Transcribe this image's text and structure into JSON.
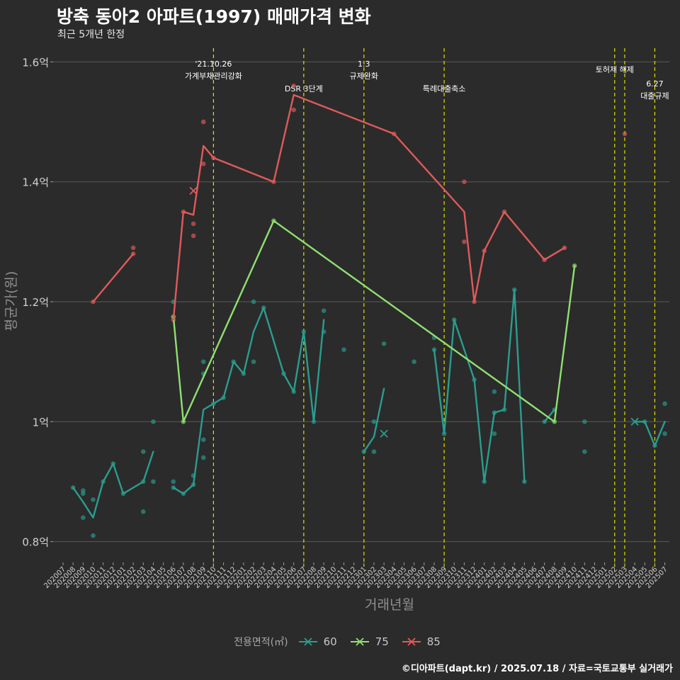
{
  "title": "방축 동아2 아파트(1997) 매매가격 변화",
  "subtitle": "최근 5개년 한정",
  "caption": "©디아파트(dapt.kr) / 2025.07.18 / 자료=국토교통부 실거래가",
  "colors": {
    "s60": "#2a9d8f",
    "s75": "#90e070",
    "s85": "#e05a5a",
    "vline": "#e0e000",
    "grid": "#5a5a5a",
    "background": "#2b2b2b"
  },
  "legend": {
    "title": "전용면적(㎡)",
    "icon": "x-marker-icon"
  },
  "chart_data": {
    "type": "line",
    "xlabel": "거래년월",
    "ylabel": "평균가(원)",
    "ylim": [
      0.77,
      1.63
    ],
    "y_ticks": [
      0.8,
      1.0,
      1.2,
      1.4,
      1.6
    ],
    "y_tick_labels": [
      "0.8억",
      "1억",
      "1.2억",
      "1.4억",
      "1.6억"
    ],
    "grid": "horizontal",
    "legend_position": "bottom",
    "x_ticks": [
      "202007",
      "202008",
      "202009",
      "202010",
      "202011",
      "202012",
      "202101",
      "202102",
      "202103",
      "202104",
      "202105",
      "202106",
      "202107",
      "202108",
      "202109",
      "202110",
      "202111",
      "202112",
      "202201",
      "202202",
      "202203",
      "202204",
      "202205",
      "202206",
      "202207",
      "202208",
      "202209",
      "202210",
      "202211",
      "202212",
      "202301",
      "202302",
      "202303",
      "202304",
      "202305",
      "202306",
      "202307",
      "202308",
      "202309",
      "202310",
      "202311",
      "202312",
      "202401",
      "202402",
      "202403",
      "202404",
      "202405",
      "202406",
      "202407",
      "202408",
      "202409",
      "202410",
      "202411",
      "202412",
      "202501",
      "202502",
      "202503",
      "202504",
      "202505",
      "202506",
      "202507"
    ],
    "series": [
      {
        "name": "60",
        "color": "#2a9d8f",
        "line": [
          [
            [
              1,
              0.89
            ],
            [
              2,
              0.866
            ],
            [
              3,
              0.84
            ],
            [
              4,
              0.9
            ],
            [
              5,
              0.93
            ],
            [
              6,
              0.88
            ],
            [
              8,
              0.9
            ],
            [
              9,
              0.95
            ]
          ],
          [
            [
              11,
              0.89
            ],
            [
              12,
              0.88
            ],
            [
              13,
              0.895
            ],
            [
              14,
              1.02
            ],
            [
              15,
              1.03
            ],
            [
              16,
              1.04
            ],
            [
              17,
              1.1
            ],
            [
              18,
              1.08
            ],
            [
              19,
              1.15
            ],
            [
              20,
              1.19
            ],
            [
              22,
              1.08
            ],
            [
              23,
              1.05
            ],
            [
              24,
              1.15
            ],
            [
              25,
              1.0
            ],
            [
              26,
              1.17
            ]
          ],
          [
            [
              30,
              0.95
            ],
            [
              31,
              0.975
            ],
            [
              32,
              1.055
            ]
          ],
          [
            [
              37,
              1.12
            ],
            [
              38,
              0.98
            ],
            [
              39,
              1.17
            ],
            [
              41,
              1.07
            ],
            [
              42,
              0.9
            ],
            [
              43,
              1.015
            ],
            [
              44,
              1.02
            ],
            [
              45,
              1.22
            ],
            [
              46,
              0.9
            ]
          ],
          [
            [
              48,
              1.0
            ],
            [
              49,
              1.02
            ]
          ],
          [
            [
              57,
              1.0
            ],
            [
              58,
              1.0
            ],
            [
              59,
              0.96
            ],
            [
              60,
              1.0
            ]
          ]
        ],
        "points": [
          [
            1,
            0.89
          ],
          [
            2,
            0.885
          ],
          [
            2,
            0.88
          ],
          [
            2,
            0.84
          ],
          [
            3,
            0.87
          ],
          [
            3,
            0.81
          ],
          [
            4,
            0.9
          ],
          [
            5,
            0.93
          ],
          [
            6,
            0.88
          ],
          [
            8,
            0.95
          ],
          [
            8,
            0.85
          ],
          [
            8,
            0.9
          ],
          [
            9,
            1.0
          ],
          [
            9,
            0.9
          ],
          [
            11,
            0.9
          ],
          [
            11,
            0.89
          ],
          [
            11,
            1.2
          ],
          [
            12,
            0.88
          ],
          [
            13,
            0.895
          ],
          [
            13,
            0.91
          ],
          [
            14,
            1.1
          ],
          [
            14,
            1.08
          ],
          [
            14,
            0.97
          ],
          [
            14,
            0.94
          ],
          [
            15,
            1.03
          ],
          [
            16,
            1.04
          ],
          [
            17,
            1.1
          ],
          [
            18,
            1.08
          ],
          [
            19,
            1.2
          ],
          [
            19,
            1.1
          ],
          [
            20,
            1.19
          ],
          [
            22,
            1.08
          ],
          [
            23,
            1.05
          ],
          [
            24,
            1.15
          ],
          [
            25,
            1.0
          ],
          [
            26,
            1.185
          ],
          [
            26,
            1.15
          ],
          [
            28,
            1.12
          ],
          [
            30,
            0.95
          ],
          [
            31,
            1.0
          ],
          [
            31,
            0.95
          ],
          [
            32,
            1.13
          ],
          [
            35,
            1.1
          ],
          [
            37,
            1.12
          ],
          [
            37,
            1.14
          ],
          [
            38,
            0.98
          ],
          [
            39,
            1.17
          ],
          [
            41,
            1.07
          ],
          [
            42,
            0.9
          ],
          [
            43,
            1.015
          ],
          [
            43,
            0.98
          ],
          [
            43,
            1.05
          ],
          [
            44,
            1.02
          ],
          [
            45,
            1.22
          ],
          [
            46,
            0.9
          ],
          [
            48,
            1.0
          ],
          [
            49,
            1.02
          ],
          [
            52,
            1.0
          ],
          [
            52,
            0.95
          ],
          [
            58,
            1.0
          ],
          [
            59,
            0.96
          ],
          [
            60,
            1.03
          ],
          [
            60,
            0.98
          ]
        ],
        "x_markers": [
          [
            32,
            0.98
          ],
          [
            57,
            1.0
          ]
        ]
      },
      {
        "name": "75",
        "color": "#90e070",
        "line": [
          [
            [
              11,
              1.175
            ],
            [
              12,
              1.0
            ],
            [
              21,
              1.335
            ],
            [
              49,
              1.0
            ],
            [
              51,
              1.26
            ]
          ]
        ],
        "points": [
          [
            11,
            1.175
          ],
          [
            12,
            1.0
          ],
          [
            21,
            1.335
          ],
          [
            49,
            1.0
          ],
          [
            51,
            1.26
          ]
        ],
        "x_markers": []
      },
      {
        "name": "85",
        "color": "#e05a5a",
        "line": [
          [
            [
              3,
              1.2
            ],
            [
              7,
              1.28
            ]
          ],
          [
            [
              11,
              1.17
            ],
            [
              12,
              1.35
            ],
            [
              13,
              1.345
            ],
            [
              14,
              1.46
            ],
            [
              15,
              1.44
            ],
            [
              21,
              1.4
            ],
            [
              23,
              1.545
            ],
            [
              33,
              1.48
            ],
            [
              40,
              1.35
            ],
            [
              41,
              1.2
            ],
            [
              42,
              1.285
            ],
            [
              44,
              1.35
            ],
            [
              48,
              1.27
            ],
            [
              50,
              1.29
            ]
          ],
          [
            [
              56,
              1.48
            ]
          ]
        ],
        "points": [
          [
            3,
            1.2
          ],
          [
            7,
            1.29
          ],
          [
            7,
            1.28
          ],
          [
            11,
            1.17
          ],
          [
            12,
            1.35
          ],
          [
            13,
            1.33
          ],
          [
            13,
            1.31
          ],
          [
            14,
            1.5
          ],
          [
            14,
            1.43
          ],
          [
            15,
            1.44
          ],
          [
            21,
            1.4
          ],
          [
            23,
            1.56
          ],
          [
            23,
            1.52
          ],
          [
            33,
            1.48
          ],
          [
            40,
            1.4
          ],
          [
            40,
            1.3
          ],
          [
            41,
            1.2
          ],
          [
            42,
            1.285
          ],
          [
            44,
            1.35
          ],
          [
            48,
            1.27
          ],
          [
            50,
            1.29
          ],
          [
            56,
            1.48
          ]
        ],
        "x_markers": [
          [
            13,
            1.385
          ]
        ]
      }
    ],
    "annotations": [
      {
        "x": 15,
        "lines": [
          "'21.10.26",
          "가계부채관리강화"
        ],
        "row": 0
      },
      {
        "x": 24,
        "lines": [
          "DSR 3단계"
        ],
        "row": 2
      },
      {
        "x": 30,
        "lines": [
          "1.3",
          "규제완화"
        ],
        "row": 0
      },
      {
        "x": 38,
        "lines": [
          "특례대출축소"
        ],
        "row": 2
      },
      {
        "x": 56,
        "lines": [
          "토허제 해제"
        ],
        "row": 1,
        "x2": 55
      },
      {
        "x": 59,
        "lines": [
          "6.27",
          "대출규제"
        ],
        "row": 3
      }
    ],
    "vlines": [
      15,
      24,
      30,
      38,
      55,
      56,
      59
    ]
  }
}
